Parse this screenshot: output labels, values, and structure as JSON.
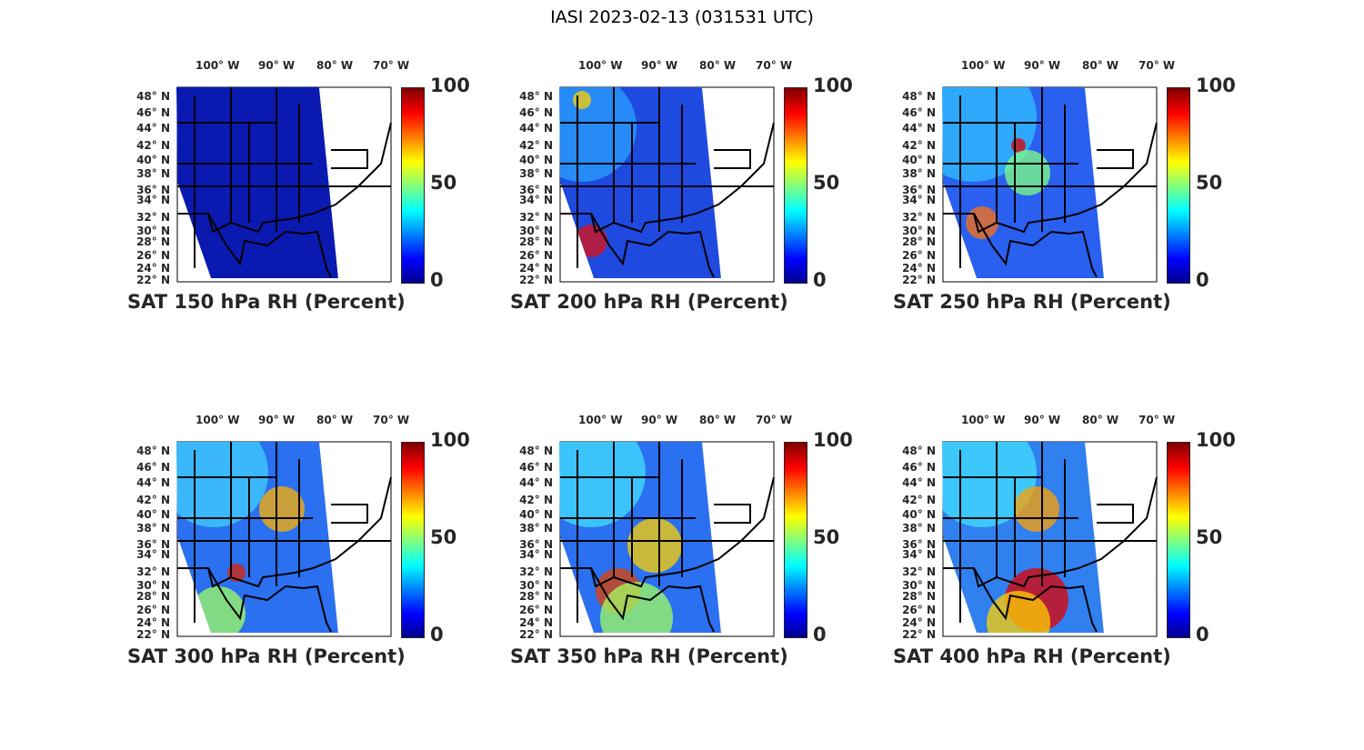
{
  "figure_title": "IASI 2023-02-13 (031531 UTC)",
  "lon_labels": [
    "100° W",
    "90° W",
    "80° W",
    "70° W"
  ],
  "lat_labels": [
    "48° N",
    "46° N",
    "44° N",
    "42° N",
    "40° N",
    "38° N",
    "36° N",
    "34° N",
    "32° N",
    "30° N",
    "28° N",
    "26° N",
    "24° N",
    "22° N"
  ],
  "colorbar": {
    "ticks": [
      "100",
      "50",
      "0"
    ],
    "min": 0,
    "max": 100,
    "colormap": "jet"
  },
  "panels": [
    {
      "title": "SAT 150 hPa RH (Percent)",
      "level_hPa": 150
    },
    {
      "title": "SAT 200 hPa RH (Percent)",
      "level_hPa": 200
    },
    {
      "title": "SAT 250 hPa RH (Percent)",
      "level_hPa": 250
    },
    {
      "title": "SAT 300 hPa RH (Percent)",
      "level_hPa": 300
    },
    {
      "title": "SAT 350 hPa RH (Percent)",
      "level_hPa": 350
    },
    {
      "title": "SAT 400 hPa RH (Percent)",
      "level_hPa": 400
    }
  ]
}
